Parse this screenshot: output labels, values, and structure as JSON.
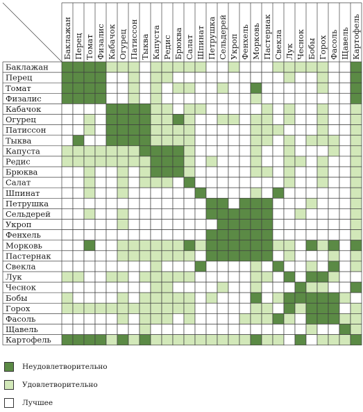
{
  "chart_data": {
    "type": "heatmap",
    "title": "",
    "colors": {
      "incompatible": "#5b8a45",
      "satisfactory": "#d2e8b9",
      "best": "#ffffff",
      "grid": "#3f3f3f"
    },
    "rows": [
      "Баклажан",
      "Перец",
      "Томат",
      "Физалис",
      "Кабачок",
      "Огурец",
      "Патиссон",
      "Тыква",
      "Капуста",
      "Редис",
      "Брюква",
      "Салат",
      "Шпинат",
      "Петрушка",
      "Сельдерей",
      "Укроп",
      "Фенхель",
      "Морковь",
      "Пастернак",
      "Свекла",
      "Лук",
      "Чеснок",
      "Бобы",
      "Горох",
      "Фасоль",
      "Щавель",
      "Картофель"
    ],
    "columns": [
      "Баклажан",
      "Перец",
      "Томат",
      "Физалис",
      "Кабачок",
      "Огурец",
      "Патиссон",
      "Тыква",
      "Капуста",
      "Редис",
      "Брюква",
      "Салат",
      "Шпинат",
      "Петрушка",
      "Сельдерей",
      "Укроп",
      "Фенхель",
      "Морковь",
      "Пастернак",
      "Свекла",
      "Лук",
      "Чеснок",
      "Бобы",
      "Горох",
      "Фасоль",
      "Щавель",
      "Картофель"
    ],
    "value_codes": {
      "2": "Неудовлетворительно",
      "1": "Удовлетворительно",
      "0": "Лучшее"
    },
    "matrix": [
      [
        2,
        2,
        2,
        2,
        1,
        1,
        1,
        0,
        1,
        1,
        1,
        1,
        1,
        0,
        0,
        1,
        0,
        0,
        0,
        1,
        1,
        1,
        1,
        1,
        0,
        0,
        2
      ],
      [
        2,
        2,
        2,
        2,
        0,
        0,
        1,
        0,
        1,
        1,
        0,
        0,
        0,
        0,
        0,
        0,
        0,
        0,
        0,
        0,
        1,
        0,
        0,
        1,
        0,
        0,
        2
      ],
      [
        2,
        2,
        2,
        2,
        0,
        0,
        1,
        0,
        1,
        0,
        1,
        1,
        0,
        0,
        1,
        0,
        0,
        2,
        0,
        0,
        0,
        0,
        0,
        1,
        0,
        0,
        2
      ],
      [
        2,
        2,
        2,
        2,
        0,
        0,
        1,
        0,
        1,
        0,
        0,
        0,
        0,
        0,
        0,
        0,
        0,
        1,
        0,
        0,
        0,
        0,
        0,
        0,
        0,
        0,
        2
      ],
      [
        0,
        0,
        0,
        0,
        2,
        2,
        2,
        2,
        1,
        1,
        0,
        1,
        1,
        0,
        0,
        0,
        0,
        0,
        1,
        0,
        1,
        0,
        0,
        1,
        0,
        0,
        1
      ],
      [
        0,
        0,
        1,
        0,
        2,
        2,
        2,
        2,
        1,
        1,
        2,
        1,
        0,
        0,
        1,
        1,
        0,
        1,
        1,
        0,
        1,
        0,
        0,
        1,
        0,
        0,
        1
      ],
      [
        0,
        0,
        1,
        0,
        2,
        2,
        2,
        2,
        1,
        1,
        1,
        1,
        0,
        0,
        0,
        0,
        0,
        1,
        1,
        1,
        0,
        0,
        0,
        1,
        0,
        0,
        1
      ],
      [
        0,
        2,
        0,
        0,
        2,
        2,
        2,
        2,
        1,
        1,
        1,
        1,
        0,
        0,
        0,
        0,
        0,
        1,
        1,
        0,
        1,
        0,
        1,
        1,
        1,
        0,
        1
      ],
      [
        1,
        1,
        1,
        1,
        1,
        1,
        1,
        2,
        2,
        2,
        2,
        1,
        0,
        0,
        0,
        0,
        0,
        1,
        0,
        0,
        1,
        0,
        0,
        0,
        1,
        0,
        1
      ],
      [
        1,
        1,
        1,
        1,
        1,
        1,
        1,
        1,
        2,
        2,
        2,
        1,
        0,
        1,
        0,
        0,
        0,
        1,
        0,
        0,
        1,
        1,
        0,
        1,
        0,
        0,
        1
      ],
      [
        0,
        0,
        1,
        0,
        0,
        1,
        0,
        1,
        2,
        2,
        2,
        1,
        0,
        0,
        0,
        0,
        0,
        1,
        1,
        0,
        1,
        0,
        0,
        1,
        0,
        0,
        1
      ],
      [
        0,
        0,
        1,
        0,
        0,
        1,
        0,
        1,
        1,
        1,
        0,
        2,
        0,
        0,
        0,
        0,
        0,
        0,
        0,
        0,
        1,
        0,
        0,
        1,
        0,
        0,
        1
      ],
      [
        0,
        0,
        1,
        0,
        0,
        1,
        0,
        0,
        0,
        0,
        0,
        0,
        2,
        0,
        0,
        0,
        0,
        1,
        0,
        2,
        0,
        0,
        0,
        0,
        0,
        0,
        1
      ],
      [
        0,
        0,
        0,
        0,
        0,
        0,
        0,
        0,
        0,
        0,
        0,
        0,
        0,
        2,
        2,
        0,
        2,
        2,
        2,
        0,
        0,
        0,
        1,
        0,
        0,
        0,
        1
      ],
      [
        0,
        0,
        1,
        0,
        0,
        1,
        0,
        0,
        0,
        0,
        0,
        0,
        0,
        2,
        2,
        2,
        2,
        2,
        2,
        0,
        0,
        1,
        0,
        0,
        0,
        0,
        1
      ],
      [
        0,
        0,
        0,
        0,
        0,
        1,
        0,
        0,
        0,
        0,
        0,
        0,
        0,
        0,
        2,
        2,
        2,
        2,
        2,
        0,
        0,
        0,
        0,
        0,
        0,
        0,
        1
      ],
      [
        0,
        0,
        0,
        0,
        0,
        0,
        0,
        0,
        0,
        0,
        0,
        0,
        0,
        2,
        2,
        2,
        2,
        2,
        2,
        0,
        0,
        0,
        0,
        0,
        0,
        0,
        1
      ],
      [
        0,
        0,
        2,
        0,
        0,
        1,
        1,
        1,
        1,
        1,
        1,
        2,
        1,
        2,
        2,
        2,
        2,
        2,
        2,
        1,
        1,
        0,
        2,
        1,
        2,
        0,
        2
      ],
      [
        0,
        0,
        0,
        0,
        0,
        1,
        1,
        1,
        1,
        1,
        1,
        1,
        0,
        2,
        2,
        2,
        2,
        2,
        2,
        0,
        1,
        0,
        0,
        0,
        1,
        0,
        1
      ],
      [
        0,
        0,
        0,
        0,
        0,
        0,
        0,
        0,
        1,
        0,
        0,
        0,
        2,
        0,
        0,
        0,
        0,
        1,
        0,
        2,
        0,
        0,
        1,
        0,
        2,
        0,
        1
      ],
      [
        1,
        1,
        0,
        0,
        1,
        1,
        0,
        1,
        1,
        1,
        1,
        1,
        0,
        0,
        0,
        0,
        0,
        1,
        1,
        0,
        2,
        0,
        2,
        2,
        1,
        0,
        0
      ],
      [
        0,
        0,
        0,
        0,
        0,
        0,
        0,
        0,
        1,
        1,
        0,
        0,
        0,
        0,
        1,
        0,
        0,
        1,
        0,
        0,
        0,
        2,
        1,
        1,
        0,
        0,
        2
      ],
      [
        1,
        0,
        0,
        0,
        0,
        1,
        0,
        1,
        1,
        1,
        1,
        1,
        0,
        1,
        0,
        0,
        0,
        2,
        0,
        1,
        2,
        2,
        2,
        2,
        2,
        1,
        0
      ],
      [
        1,
        1,
        1,
        1,
        1,
        1,
        1,
        1,
        1,
        1,
        1,
        1,
        0,
        0,
        0,
        0,
        0,
        1,
        1,
        0,
        2,
        1,
        2,
        2,
        2,
        0,
        1
      ],
      [
        0,
        0,
        0,
        0,
        0,
        1,
        0,
        1,
        1,
        1,
        0,
        1,
        0,
        0,
        0,
        0,
        1,
        1,
        1,
        2,
        1,
        0,
        2,
        2,
        2,
        1,
        1
      ],
      [
        0,
        0,
        0,
        0,
        0,
        0,
        0,
        1,
        0,
        0,
        0,
        0,
        0,
        0,
        0,
        0,
        0,
        0,
        0,
        0,
        0,
        0,
        1,
        0,
        0,
        2,
        1
      ],
      [
        2,
        2,
        2,
        2,
        1,
        2,
        1,
        2,
        1,
        1,
        1,
        1,
        1,
        1,
        1,
        1,
        1,
        2,
        1,
        1,
        0,
        2,
        0,
        1,
        1,
        1,
        2
      ]
    ],
    "legend": [
      {
        "label": "Неудовлетворительно",
        "code": 2
      },
      {
        "label": "Удовлетворительно",
        "code": 1
      },
      {
        "label": "Лучшее",
        "code": 0
      }
    ]
  }
}
